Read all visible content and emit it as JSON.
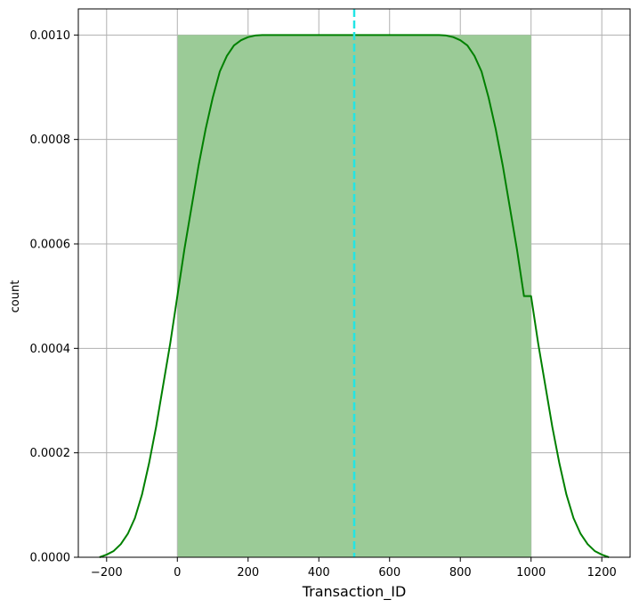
{
  "chart_data": {
    "type": "histogram",
    "xlabel": "Transaction_ID",
    "ylabel": "count",
    "xlim": [
      -280,
      1280
    ],
    "ylim": [
      0,
      0.00105
    ],
    "xticks": [
      -200,
      0,
      200,
      400,
      600,
      800,
      1000,
      1200
    ],
    "xtick_labels": [
      "−200",
      "0",
      "200",
      "400",
      "600",
      "800",
      "1000",
      "1200"
    ],
    "yticks": [
      0,
      0.0002,
      0.0004,
      0.0006,
      0.0008,
      0.001
    ],
    "ytick_labels": [
      "0.0000",
      "0.0002",
      "0.0004",
      "0.0006",
      "0.0008",
      "0.0010"
    ],
    "grid": true,
    "histogram": {
      "bins": [
        {
          "x0": 1,
          "x1": 1000,
          "density": 0.001
        }
      ],
      "color": "#9bcb97"
    },
    "kde": {
      "color": "#008000",
      "x": [
        -220,
        -200,
        -180,
        -160,
        -140,
        -120,
        -100,
        -80,
        -60,
        -40,
        -20,
        0,
        20,
        40,
        60,
        80,
        100,
        120,
        140,
        160,
        180,
        200,
        220,
        240,
        260,
        280,
        300,
        500,
        700,
        720,
        740,
        760,
        780,
        800,
        820,
        840,
        860,
        880,
        900,
        920,
        940,
        960,
        980,
        1000,
        1020,
        1040,
        1060,
        1080,
        1100,
        1120,
        1140,
        1160,
        1180,
        1200,
        1220
      ],
      "y": [
        0.0,
        5e-06,
        1.2e-05,
        2.5e-05,
        4.5e-05,
        7.5e-05,
        0.00012,
        0.00018,
        0.00025,
        0.00033,
        0.00041,
        0.0005,
        0.00059,
        0.00067,
        0.00075,
        0.00082,
        0.00088,
        0.00093,
        0.00096,
        0.00098,
        0.00099,
        0.000996,
        0.000999,
        0.001,
        0.001,
        0.001,
        0.001,
        0.001,
        0.001,
        0.001,
        0.001,
        0.000999,
        0.000996,
        0.00099,
        0.00098,
        0.00096,
        0.00093,
        0.00088,
        0.00082,
        0.00075,
        0.00067,
        0.00059,
        0.0005,
        0.0005,
        0.00041,
        0.00033,
        0.00025,
        0.00018,
        0.00012,
        7.5e-05,
        4.5e-05,
        2.5e-05,
        1.2e-05,
        5e-06,
        0.0
      ]
    },
    "mean_line": {
      "x": 500,
      "color": "#22e5e5",
      "style": "dashed"
    }
  }
}
